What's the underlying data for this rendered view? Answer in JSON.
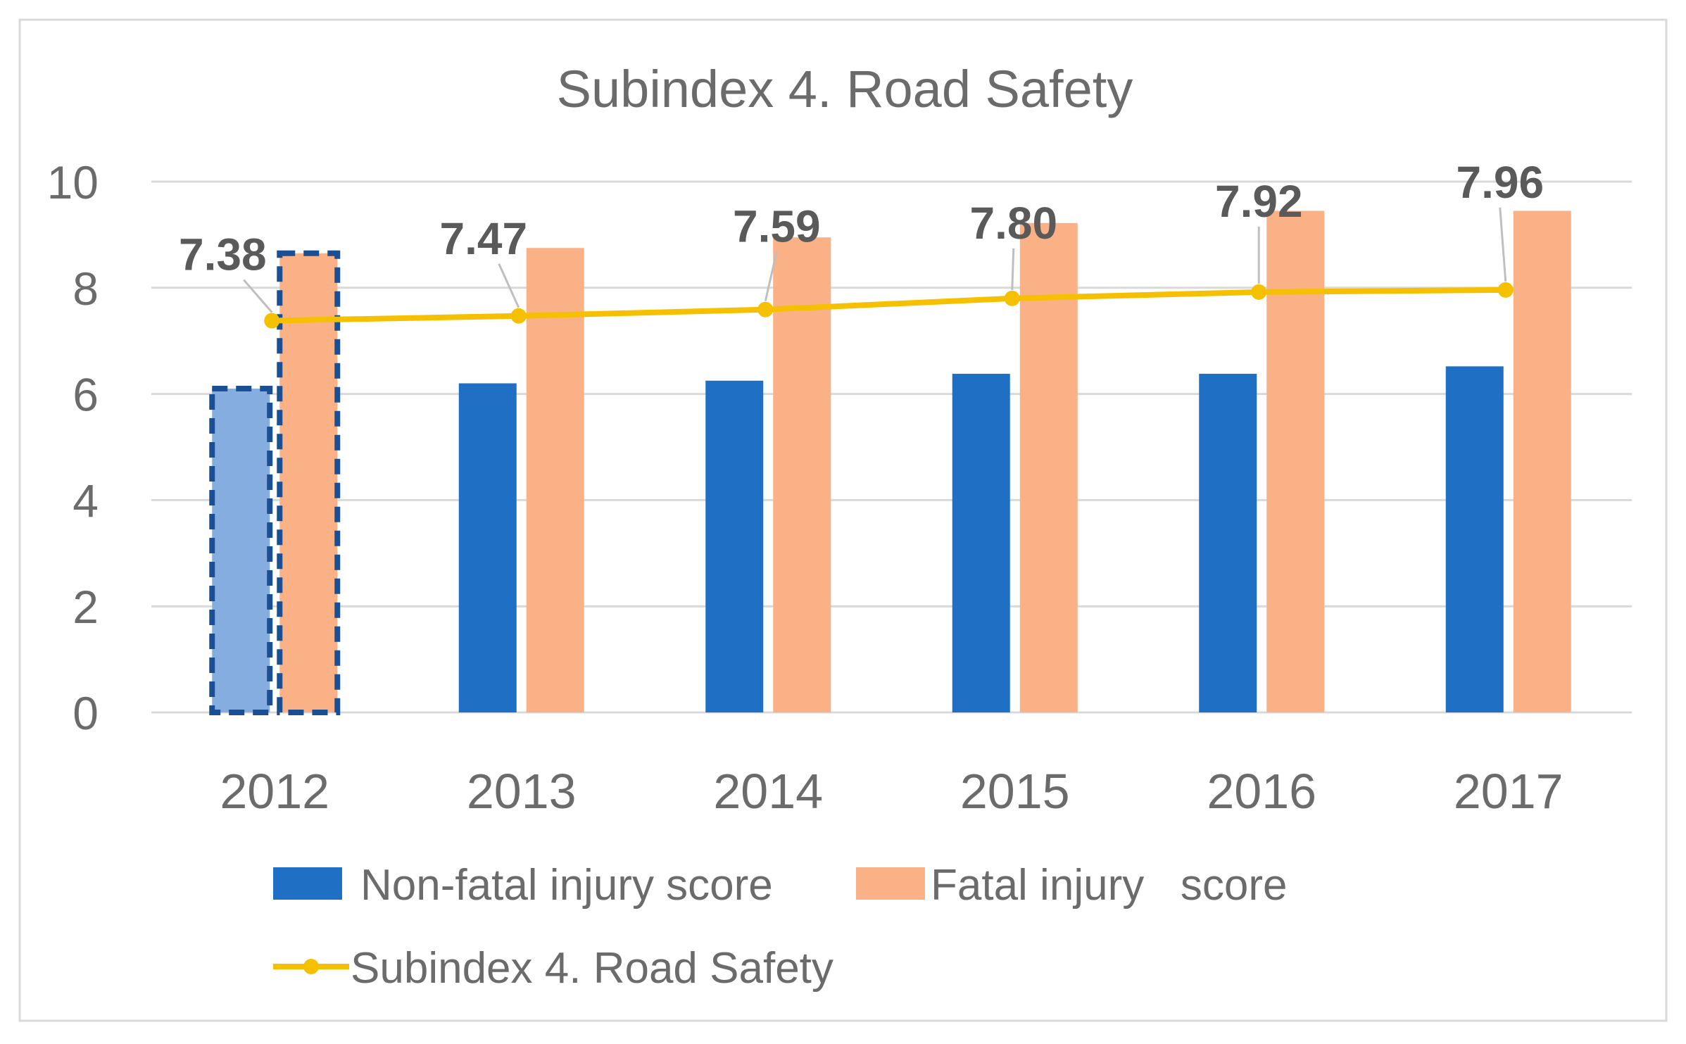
{
  "chart_data": {
    "type": "bar",
    "title": "Subindex 4. Road Safety",
    "categories": [
      "2012",
      "2013",
      "2014",
      "2015",
      "2016",
      "2017"
    ],
    "series": [
      {
        "name": "Non-fatal injury score",
        "kind": "bar",
        "color": "#1f6fc5",
        "values": [
          6.1,
          6.2,
          6.25,
          6.38,
          6.38,
          6.52
        ]
      },
      {
        "name": "Fatal injury   score",
        "kind": "bar",
        "color": "#f9b185",
        "values": [
          8.65,
          8.75,
          8.95,
          9.22,
          9.45,
          9.45
        ]
      },
      {
        "name": "Subindex 4. Road Safety",
        "kind": "line",
        "color": "#f5c000",
        "values": [
          7.38,
          7.47,
          7.59,
          7.8,
          7.92,
          7.96
        ],
        "labels": [
          "7.38",
          "7.47",
          "7.59",
          "7.80",
          "7.92",
          "7.96"
        ]
      }
    ],
    "highlight": {
      "category": "2012",
      "color_non_fatal": "#86ade0",
      "outline": "#1b4f94"
    },
    "yticks": [
      "0",
      "2",
      "4",
      "6",
      "8",
      "10"
    ],
    "ylim": [
      0,
      10
    ],
    "xlabel": "",
    "ylabel": "",
    "grid": true,
    "legend": "bottom"
  }
}
